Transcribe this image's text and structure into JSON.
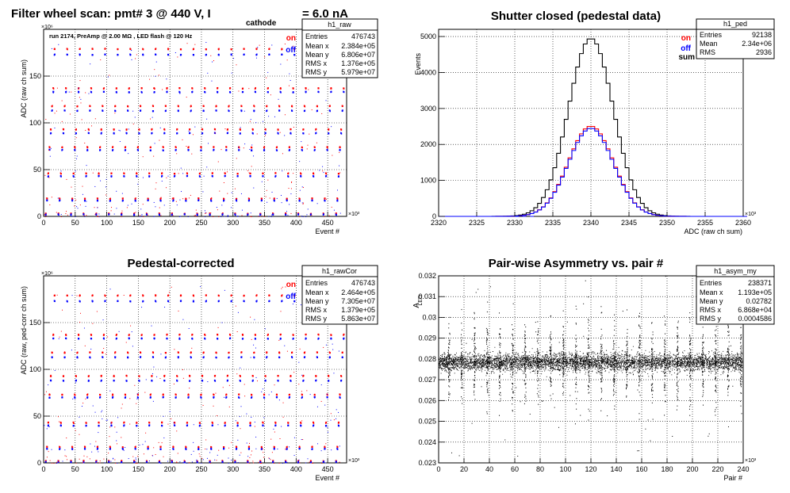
{
  "colors": {
    "on": "#ff0000",
    "off": "#0000ff",
    "sum": "#000000",
    "grid": "#000000"
  },
  "chart_data": [
    {
      "id": "raw",
      "type": "scatter",
      "title": "Filter wheel scan: pmt#   3 @   440 V, I",
      "title_sub": "cathode",
      "title_tail": "= 6.0 nA",
      "subtitle": "run 2174, PreAmp @ 2.00 MΩ , LED flash @  120 Hz",
      "xlabel": "Event #",
      "ylabel": "ADC (raw ch sum)",
      "x_multiplier": "×10³",
      "y_multiplier": "×10⁶",
      "xlim": [
        0,
        480
      ],
      "ylim": [
        0,
        200
      ],
      "xticks": [
        0,
        50,
        100,
        150,
        200,
        250,
        300,
        350,
        400,
        450
      ],
      "yticks": [
        0,
        50,
        100,
        150
      ],
      "grid": true,
      "legend": [
        {
          "label": "on",
          "color": "#ff0000"
        },
        {
          "label": "off",
          "color": "#0000ff"
        }
      ],
      "stats_box": {
        "name": "h1_raw",
        "rows": [
          [
            "Entries",
            "476743"
          ],
          [
            "Mean x",
            "2.384e+05"
          ],
          [
            "Mean y",
            "6.806e+07"
          ],
          [
            "RMS x",
            "1.376e+05"
          ],
          [
            "RMS y",
            "5.979e+07"
          ]
        ]
      },
      "series": [
        {
          "name": "on",
          "levels": [
            3,
            19,
            46,
            74,
            93,
            118,
            137,
            179
          ]
        },
        {
          "name": "off",
          "levels": [
            2,
            17,
            43,
            71,
            89,
            113,
            133,
            173
          ]
        }
      ],
      "x_period": 20
    },
    {
      "id": "ped",
      "type": "line",
      "title": "Shutter closed (pedestal data)",
      "xlabel": "ADC (raw ch sum)",
      "ylabel": "Events",
      "x_multiplier": "×10³",
      "xlim": [
        2320,
        2360
      ],
      "ylim": [
        0,
        5200
      ],
      "xticks": [
        2320,
        2325,
        2330,
        2335,
        2340,
        2345,
        2350,
        2355,
        2360
      ],
      "yticks": [
        0,
        1000,
        2000,
        3000,
        4000,
        5000
      ],
      "grid": true,
      "legend": [
        {
          "label": "on",
          "color": "#ff0000"
        },
        {
          "label": "off",
          "color": "#0000ff"
        },
        {
          "label": "sum",
          "color": "#000000"
        }
      ],
      "stats_box": {
        "name": "h1_ped",
        "rows": [
          [
            "Entries",
            "92138"
          ],
          [
            "Mean",
            "2.34e+06"
          ],
          [
            "RMS",
            "2936"
          ]
        ]
      },
      "series": [
        {
          "name": "sum",
          "mean": 2340,
          "sigma": 2.95,
          "peak": 4950
        },
        {
          "name": "on",
          "mean": 2340,
          "sigma": 2.95,
          "peak": 2510
        },
        {
          "name": "off",
          "mean": 2340,
          "sigma": 2.95,
          "peak": 2450
        }
      ]
    },
    {
      "id": "rawCor",
      "type": "scatter",
      "title": "Pedestal-corrected",
      "xlabel": "Event #",
      "ylabel": "ADC (raw, ped-corr ch sum)",
      "x_multiplier": "×10³",
      "y_multiplier": "×10⁶",
      "xlim": [
        0,
        480
      ],
      "ylim": [
        0,
        200
      ],
      "xticks": [
        0,
        50,
        100,
        150,
        200,
        250,
        300,
        350,
        400,
        450
      ],
      "yticks": [
        0,
        50,
        100,
        150
      ],
      "grid": true,
      "legend": [
        {
          "label": "on",
          "color": "#ff0000"
        },
        {
          "label": "off",
          "color": "#0000ff"
        }
      ],
      "stats_box": {
        "name": "h1_rawCor",
        "rows": [
          [
            "Entries",
            "476743"
          ],
          [
            "Mean x",
            "2.464e+05"
          ],
          [
            "Mean y",
            "7.305e+07"
          ],
          [
            "RMS x",
            "1.379e+05"
          ],
          [
            "RMS y",
            "5.863e+07"
          ]
        ]
      },
      "series": [
        {
          "name": "on",
          "levels": [
            2,
            17,
            43,
            73,
            93,
            118,
            137,
            179
          ]
        },
        {
          "name": "off",
          "levels": [
            1,
            15,
            40,
            70,
            88,
            113,
            133,
            173
          ]
        }
      ],
      "x_period": 20
    },
    {
      "id": "asym",
      "type": "scatter",
      "title": "Pair-wise Asymmetry vs. pair #",
      "xlabel": "Pair #",
      "ylabel": "A",
      "ylabel_sub": "LED",
      "x_multiplier": "×10³",
      "xlim": [
        0,
        240
      ],
      "ylim": [
        0.023,
        0.032
      ],
      "xticks": [
        0,
        20,
        40,
        60,
        80,
        100,
        120,
        140,
        160,
        180,
        200,
        220,
        240
      ],
      "yticks": [
        0.023,
        0.024,
        0.025,
        0.026,
        0.027,
        0.028,
        0.029,
        0.03,
        0.031,
        0.032
      ],
      "ytick_labels": [
        "0.023",
        "0.024",
        "0.025",
        "0.026",
        "0.027",
        "0.028",
        "0.029",
        "0.03",
        "0.031",
        "0.032"
      ],
      "grid": true,
      "stats_box": {
        "name": "h1_asym_my",
        "rows": [
          [
            "Entries",
            "238371"
          ],
          [
            "Mean x",
            "1.193e+05"
          ],
          [
            "Mean y",
            "0.02782"
          ],
          [
            "RMS x",
            "6.868e+04"
          ],
          [
            "RMS y",
            "0.0004586"
          ]
        ]
      },
      "series": [
        {
          "name": "asym",
          "center": 0.02785,
          "spread": 0.00045
        }
      ],
      "x_period": 10
    }
  ]
}
